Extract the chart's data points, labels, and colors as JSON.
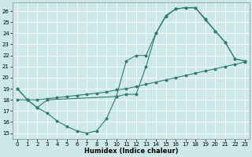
{
  "title": "",
  "xlabel": "Humidex (Indice chaleur)",
  "bg_color": "#cde8e8",
  "grid_color": "#ffffff",
  "line_color": "#2e7d6e",
  "xlim": [
    -0.5,
    23.5
  ],
  "ylim": [
    14.5,
    26.8
  ],
  "yticks": [
    15,
    16,
    17,
    18,
    19,
    20,
    21,
    22,
    23,
    24,
    25,
    26
  ],
  "xticks": [
    0,
    1,
    2,
    3,
    4,
    5,
    6,
    7,
    8,
    9,
    10,
    11,
    12,
    13,
    14,
    15,
    16,
    17,
    18,
    19,
    20,
    21,
    22,
    23
  ],
  "curve1_x": [
    0,
    1,
    2,
    3,
    4,
    5,
    6,
    7,
    8,
    9,
    10,
    11,
    12,
    13,
    14,
    15,
    16,
    17,
    18,
    19,
    20,
    21,
    22,
    23
  ],
  "curve1_y": [
    19.0,
    18.0,
    17.3,
    16.8,
    16.1,
    15.6,
    15.2,
    15.0,
    15.2,
    16.3,
    18.3,
    18.5,
    18.5,
    21.0,
    24.0,
    25.5,
    26.2,
    26.3,
    26.3,
    25.2,
    24.2,
    23.2,
    21.7,
    21.5
  ],
  "curve2_x": [
    0,
    1,
    2,
    3,
    4,
    5,
    6,
    7,
    8,
    9,
    10,
    11,
    12,
    13,
    14,
    15,
    16,
    17,
    18,
    19,
    20,
    21,
    22,
    23
  ],
  "curve2_y": [
    18.0,
    18.0,
    18.0,
    18.1,
    18.2,
    18.3,
    18.4,
    18.5,
    18.6,
    18.7,
    18.9,
    19.0,
    19.2,
    19.4,
    19.6,
    19.8,
    20.0,
    20.2,
    20.4,
    20.6,
    20.8,
    21.0,
    21.2,
    21.4
  ],
  "curve3_x": [
    0,
    1,
    2,
    3,
    10,
    11,
    12,
    13,
    14,
    15,
    16,
    17,
    18,
    19,
    20,
    21,
    22,
    23
  ],
  "curve3_y": [
    19.0,
    18.0,
    17.3,
    18.0,
    18.3,
    21.5,
    22.0,
    22.0,
    24.0,
    25.6,
    26.2,
    26.3,
    26.3,
    25.3,
    24.2,
    23.2,
    21.7,
    21.5
  ],
  "tick_fontsize": 5.0,
  "xlabel_fontsize": 6.0,
  "lw": 0.8,
  "ms": 1.8
}
